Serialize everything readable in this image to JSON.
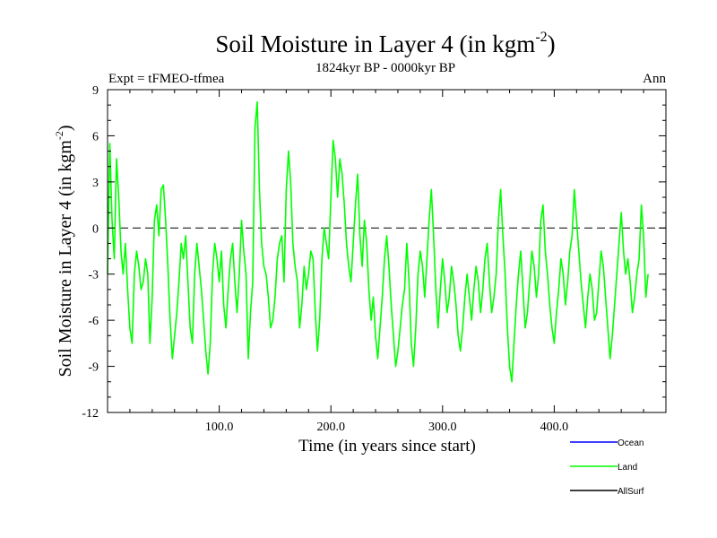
{
  "chart_data": {
    "type": "line",
    "title": "Soil Moisture in Layer 4 (in kgm",
    "title_sup": "-2",
    "title_close": ")",
    "subtitle": "1824kyr BP - 0000kyr BP",
    "experiment_label": "Expt = tFMEO-tfmea",
    "season_label": "Ann",
    "xlabel": "Time (in years since start)",
    "ylabel": "Soil Moisture in Layer 4 (in kgm",
    "ylabel_sup": "-2",
    "ylabel_close": ")",
    "xlim": [
      0,
      500
    ],
    "ylim": [
      -12,
      9
    ],
    "x_ticks": [
      100,
      200,
      300,
      400
    ],
    "x_tick_labels": [
      "100.0",
      "200.0",
      "300.0",
      "400.0"
    ],
    "y_ticks": [
      9,
      6,
      3,
      0,
      -3,
      -6,
      -9,
      -12
    ],
    "y_tick_labels": [
      "9",
      "6",
      "3",
      "0",
      "-3",
      "-6",
      "-9",
      "-12"
    ],
    "zero_line": {
      "value": 0,
      "style": "dashed"
    },
    "legend": [
      {
        "name": "Ocean",
        "color": "#0000ff"
      },
      {
        "name": "Land",
        "color": "#00ff00"
      },
      {
        "name": "AllSurf",
        "color": "#000000"
      }
    ],
    "series": [
      {
        "name": "Land",
        "color": "#00ff00",
        "x_start": 0,
        "x_step": 2,
        "values": [
          -3.0,
          5.5,
          0.5,
          -2.0,
          4.5,
          2.0,
          -1.5,
          -3.0,
          -1.0,
          -4.0,
          -6.5,
          -7.5,
          -3.0,
          -1.5,
          -2.5,
          -4.0,
          -3.5,
          -2.0,
          -3.0,
          -7.5,
          -4.5,
          0.5,
          1.5,
          -0.5,
          2.5,
          2.8,
          0.5,
          -2.5,
          -6.0,
          -8.5,
          -7.0,
          -5.5,
          -3.5,
          -1.0,
          -2.0,
          -0.5,
          -3.5,
          -6.5,
          -7.5,
          -3.0,
          -1.0,
          -2.5,
          -4.0,
          -6.0,
          -8.0,
          -9.5,
          -7.5,
          -3.0,
          -1.0,
          -2.0,
          -3.5,
          -1.5,
          -5.0,
          -6.5,
          -4.0,
          -2.0,
          -1.0,
          -3.5,
          -5.5,
          -3.0,
          0.5,
          -1.5,
          -3.0,
          -8.5,
          -5.5,
          -3.5,
          6.5,
          8.2,
          2.5,
          -1.0,
          -2.5,
          -3.0,
          -4.5,
          -6.5,
          -6.0,
          -4.5,
          -2.0,
          -1.0,
          -0.5,
          -3.5,
          2.5,
          5.0,
          3.0,
          -1.0,
          -2.5,
          -3.5,
          -6.5,
          -5.0,
          -2.5,
          -4.0,
          -3.0,
          -1.5,
          -2.0,
          -5.5,
          -8.0,
          -6.0,
          -2.0,
          0.0,
          -1.0,
          -2.0,
          2.0,
          5.7,
          4.5,
          2.0,
          4.5,
          3.5,
          1.5,
          -1.0,
          -2.5,
          -3.5,
          -1.0,
          1.5,
          3.5,
          -0.5,
          -2.5,
          0.5,
          -1.0,
          -4.0,
          -6.0,
          -4.5,
          -7.0,
          -8.5,
          -6.5,
          -4.5,
          -2.0,
          -0.5,
          -2.5,
          -5.0,
          -7.0,
          -9.0,
          -8.0,
          -6.5,
          -5.0,
          -4.0,
          -1.0,
          -3.5,
          -7.5,
          -9.0,
          -6.5,
          -3.0,
          -1.5,
          -2.5,
          -4.5,
          -2.0,
          0.5,
          2.5,
          -0.5,
          -4.0,
          -6.5,
          -4.0,
          -2.0,
          -3.5,
          -5.5,
          -4.5,
          -2.5,
          -3.5,
          -5.0,
          -7.0,
          -8.0,
          -6.5,
          -4.5,
          -3.0,
          -4.5,
          -6.0,
          -4.0,
          -2.5,
          -3.5,
          -5.5,
          -4.0,
          -2.0,
          -1.0,
          -3.5,
          -5.5,
          -4.5,
          -3.0,
          0.5,
          2.5,
          -0.5,
          -3.0,
          -6.5,
          -9.0,
          -10.0,
          -7.5,
          -5.0,
          -3.0,
          -1.5,
          -4.0,
          -6.5,
          -5.5,
          -3.5,
          -1.5,
          -2.5,
          -4.5,
          -3.0,
          0.5,
          1.5,
          -1.5,
          -3.0,
          -5.0,
          -6.5,
          -7.5,
          -5.5,
          -4.0,
          -2.0,
          -3.0,
          -5.0,
          -3.5,
          -1.5,
          -0.5,
          2.5,
          0.5,
          -1.5,
          -3.5,
          -5.0,
          -6.5,
          -4.5,
          -3.0,
          -4.0,
          -6.0,
          -5.5,
          -3.5,
          -1.5,
          -2.5,
          -4.5,
          -6.5,
          -8.5,
          -7.0,
          -5.0,
          -3.0,
          -1.0,
          1.0,
          -1.5,
          -3.0,
          -2.0,
          -3.5,
          -5.5,
          -4.5,
          -3.0,
          -2.0,
          1.5,
          -0.5,
          -4.5,
          -3.0
        ]
      }
    ]
  }
}
